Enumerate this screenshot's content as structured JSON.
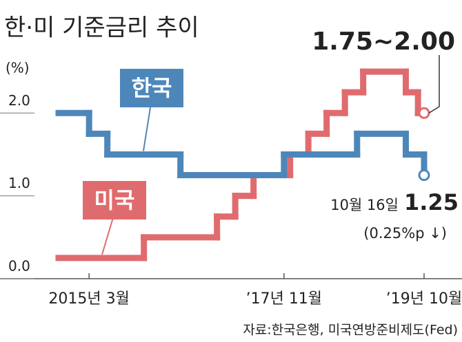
{
  "chart_data": {
    "type": "step-line",
    "title": "한·미 기준금리 추이",
    "y_label": "(%)",
    "source": "자료:한국은행, 미국연방준비제도(Fed)",
    "xlim": [
      "2014-10",
      "2019-10"
    ],
    "xticks": [
      {
        "value": "2015-03",
        "label": "2015년 3월"
      },
      {
        "value": "2017-11",
        "label": "’17년 11월"
      },
      {
        "value": "2019-10",
        "label": "’19년 10월"
      }
    ],
    "ylim": [
      0,
      2.7
    ],
    "yticks": [
      {
        "value": 0,
        "label": "0.0"
      },
      {
        "value": 1,
        "label": "1.0"
      },
      {
        "value": 2,
        "label": "2.0"
      }
    ],
    "series": [
      {
        "name": "한국",
        "color": "#4d87ba",
        "x": [
          "2014-10",
          "2015-03",
          "2015-06",
          "2016-06",
          "2017-11",
          "2018-11",
          "2019-07",
          "2019-10"
        ],
        "values": [
          2.0,
          1.75,
          1.5,
          1.25,
          1.5,
          1.75,
          1.5,
          1.25
        ]
      },
      {
        "name": "미국",
        "color": "#e06b6e",
        "x": [
          "2014-10",
          "2015-12",
          "2016-12",
          "2017-03",
          "2017-06",
          "2017-12",
          "2018-03",
          "2018-06",
          "2018-09",
          "2018-12",
          "2019-07",
          "2019-09"
        ],
        "values": [
          0.25,
          0.5,
          0.75,
          1.0,
          1.25,
          1.5,
          1.75,
          2.0,
          2.25,
          2.5,
          2.25,
          2.0
        ]
      }
    ],
    "annotations": {
      "us_range": "1.75~2.00",
      "date": "10월 16일",
      "value": 1.25,
      "change": "(0.25%p ↓)"
    }
  }
}
